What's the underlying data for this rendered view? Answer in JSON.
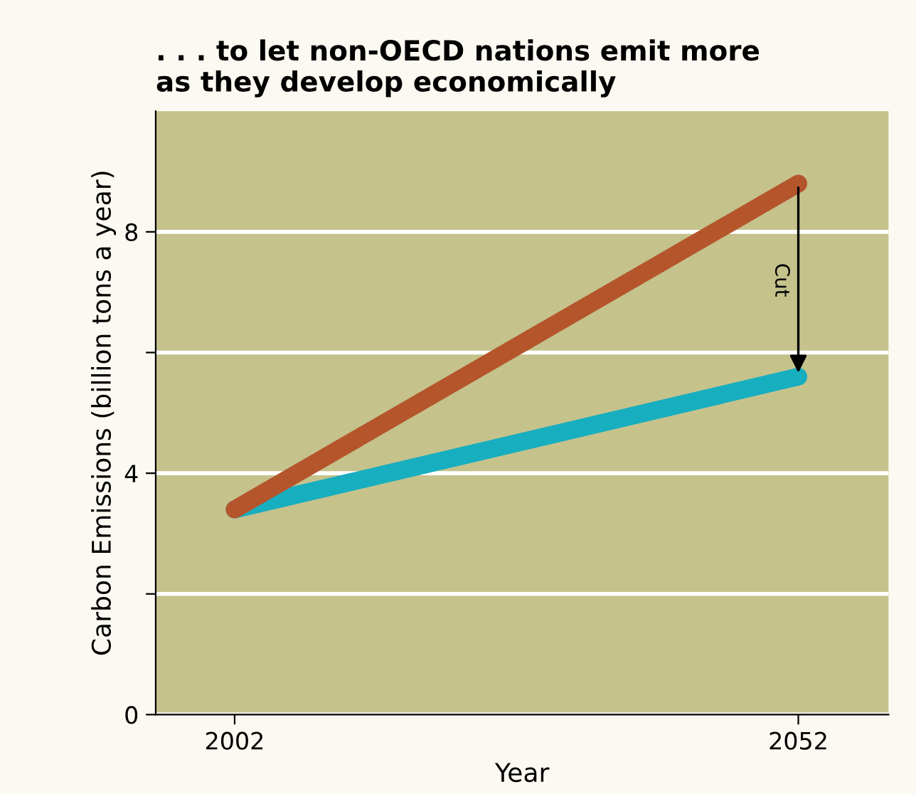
{
  "chart_data": {
    "type": "line",
    "title": ". . . to let non-OECD nations emit more\nas they develop economically",
    "xlabel": "Year",
    "ylabel": "Carbon Emissions (billion tons a year)",
    "x": [
      2002,
      2052
    ],
    "series": [
      {
        "color": "#b4552c",
        "values": [
          3.4,
          8.8
        ]
      },
      {
        "color": "#17aec0",
        "values": [
          3.4,
          5.6
        ]
      }
    ],
    "xlim": [
      1995,
      2060
    ],
    "xticks": [
      2002,
      2052
    ],
    "ylim": [
      0,
      10
    ],
    "yticks": [
      0,
      {
        "value": 2,
        "label": null
      },
      4,
      {
        "value": 6,
        "label": null
      },
      8
    ],
    "grid": "y",
    "annotations": [
      "Cut"
    ]
  }
}
